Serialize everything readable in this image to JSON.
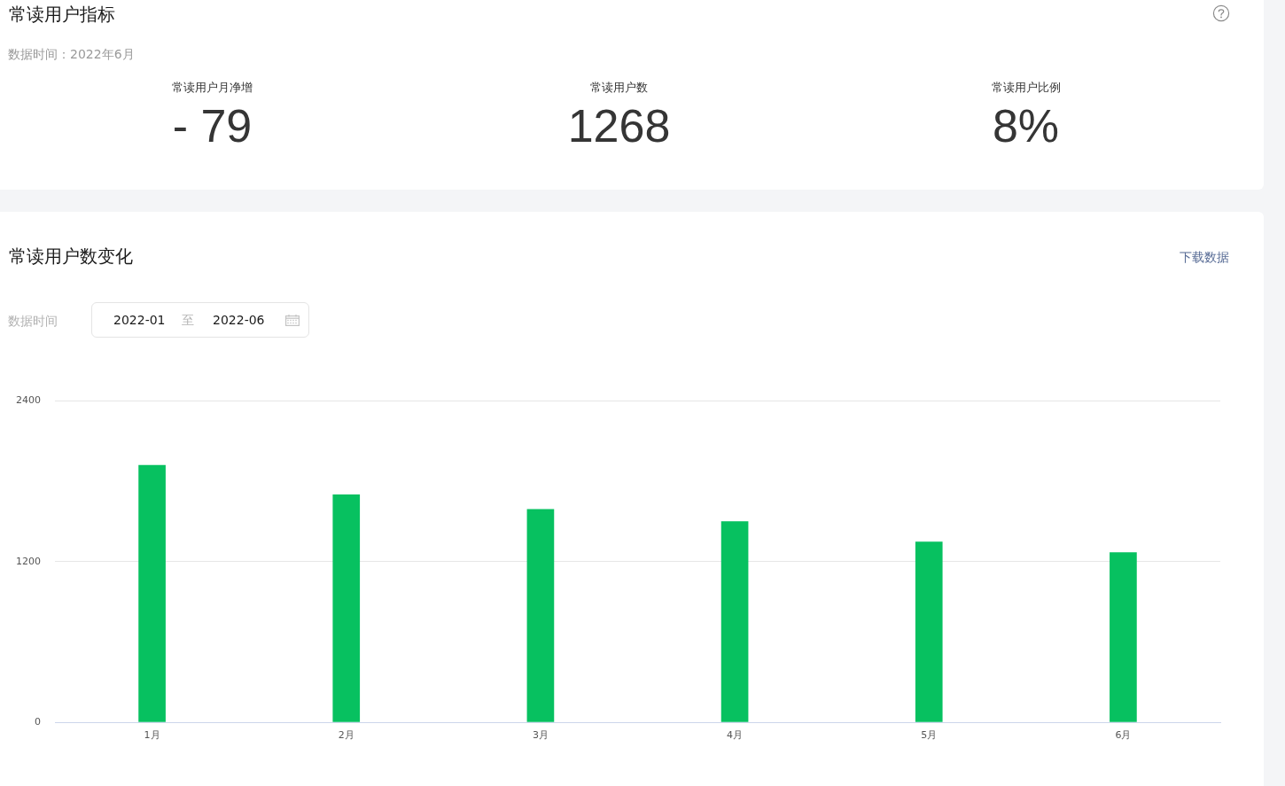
{
  "chart_data": [
    {
      "type": "other",
      "title": "常读用户指标",
      "subtitle": "数据时间：2022年6月",
      "annotations": [
        "常读用户月净增",
        "- 79",
        "常读用户数",
        "1268",
        "常读用户比例",
        "8%"
      ]
    },
    {
      "type": "bar",
      "title": "常读用户数变化",
      "annotations": [
        "下载数据",
        "数据时间",
        "2022-01",
        "至",
        "2022-06"
      ],
      "categories": [
        "1月",
        "2月",
        "3月",
        "4月",
        "5月",
        "6月"
      ],
      "values": [
        1920,
        1700,
        1590,
        1500,
        1347,
        1268
      ],
      "color": "#07c160",
      "ylim": [
        0,
        2400
      ],
      "yticks": [
        0,
        1200,
        2400
      ],
      "grid": "y"
    }
  ]
}
